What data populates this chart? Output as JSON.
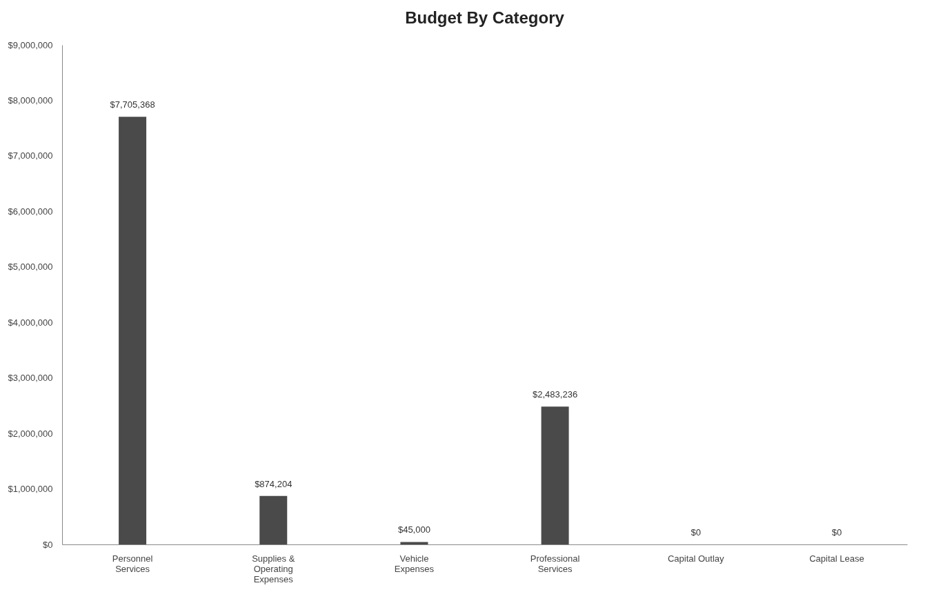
{
  "chart_data": {
    "type": "bar",
    "title": "Budget By Category",
    "categories": [
      "Personnel Services",
      "Supplies & Operating Expenses",
      "Vehicle Expenses",
      "Professional Services",
      "Capital Outlay",
      "Capital Lease"
    ],
    "values": [
      7705368,
      874204,
      45000,
      2483236,
      0,
      0
    ],
    "value_labels": [
      "$7,705,368",
      "$874,204",
      "$45,000",
      "$2,483,236",
      "$0",
      "$0"
    ],
    "color": "#4a4a4a",
    "ylim": [
      0,
      9000000
    ],
    "yticks": [
      {
        "value": 0,
        "label": "$0"
      },
      {
        "value": 1000000,
        "label": "$1,000,000"
      },
      {
        "value": 2000000,
        "label": "$2,000,000"
      },
      {
        "value": 3000000,
        "label": "$3,000,000"
      },
      {
        "value": 4000000,
        "label": "$4,000,000"
      },
      {
        "value": 5000000,
        "label": "$5,000,000"
      },
      {
        "value": 6000000,
        "label": "$6,000,000"
      },
      {
        "value": 7000000,
        "label": "$7,000,000"
      },
      {
        "value": 8000000,
        "label": "$8,000,000"
      },
      {
        "value": 9000000,
        "label": "$9,000,000"
      }
    ],
    "grid": false
  }
}
